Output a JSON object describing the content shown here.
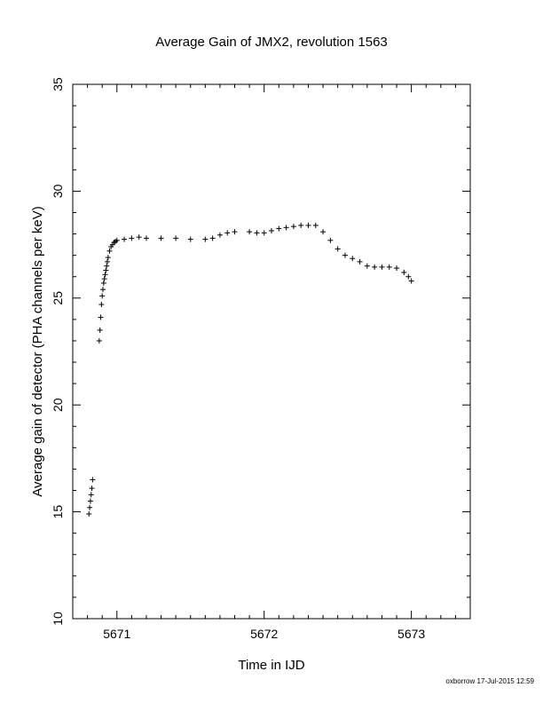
{
  "chart_data": {
    "type": "scatter",
    "title": "Average Gain of JMX2, revolution 1563",
    "xlabel": "Time in IJD",
    "ylabel": "Average gain of detector (PHA channels per keV)",
    "xlim": [
      5670.7,
      5673.4
    ],
    "ylim": [
      10,
      35
    ],
    "xticks": [
      5671,
      5672,
      5673
    ],
    "yticks": [
      10,
      15,
      20,
      25,
      30,
      35
    ],
    "x_minor_step": 0.1,
    "y_minor_step": 1,
    "grid": false,
    "marker": "+",
    "color": "#000000",
    "series": [
      {
        "points": [
          [
            5670.81,
            14.9
          ],
          [
            5670.815,
            15.2
          ],
          [
            5670.82,
            15.5
          ],
          [
            5670.825,
            15.8
          ],
          [
            5670.83,
            16.1
          ],
          [
            5670.835,
            16.5
          ],
          [
            5670.88,
            23.0
          ],
          [
            5670.885,
            23.5
          ],
          [
            5670.89,
            24.1
          ],
          [
            5670.895,
            24.7
          ],
          [
            5670.9,
            25.1
          ],
          [
            5670.905,
            25.4
          ],
          [
            5670.91,
            25.7
          ],
          [
            5670.915,
            25.9
          ],
          [
            5670.92,
            26.1
          ],
          [
            5670.925,
            26.3
          ],
          [
            5670.93,
            26.5
          ],
          [
            5670.935,
            26.7
          ],
          [
            5670.94,
            26.9
          ],
          [
            5670.95,
            27.2
          ],
          [
            5670.96,
            27.4
          ],
          [
            5670.97,
            27.5
          ],
          [
            5670.98,
            27.6
          ],
          [
            5670.99,
            27.65
          ],
          [
            5671.0,
            27.7
          ],
          [
            5671.05,
            27.75
          ],
          [
            5671.1,
            27.8
          ],
          [
            5671.15,
            27.85
          ],
          [
            5671.2,
            27.8
          ],
          [
            5671.3,
            27.8
          ],
          [
            5671.4,
            27.8
          ],
          [
            5671.5,
            27.75
          ],
          [
            5671.6,
            27.75
          ],
          [
            5671.65,
            27.8
          ],
          [
            5671.7,
            27.95
          ],
          [
            5671.75,
            28.05
          ],
          [
            5671.8,
            28.1
          ],
          [
            5671.9,
            28.1
          ],
          [
            5671.95,
            28.05
          ],
          [
            5672.0,
            28.05
          ],
          [
            5672.05,
            28.15
          ],
          [
            5672.1,
            28.25
          ],
          [
            5672.15,
            28.3
          ],
          [
            5672.2,
            28.35
          ],
          [
            5672.25,
            28.4
          ],
          [
            5672.3,
            28.4
          ],
          [
            5672.35,
            28.4
          ],
          [
            5672.4,
            28.1
          ],
          [
            5672.45,
            27.7
          ],
          [
            5672.5,
            27.3
          ],
          [
            5672.55,
            27.0
          ],
          [
            5672.6,
            26.85
          ],
          [
            5672.65,
            26.7
          ],
          [
            5672.7,
            26.5
          ],
          [
            5672.75,
            26.45
          ],
          [
            5672.8,
            26.45
          ],
          [
            5672.85,
            26.45
          ],
          [
            5672.9,
            26.4
          ],
          [
            5672.95,
            26.2
          ],
          [
            5672.98,
            26.0
          ],
          [
            5673.0,
            25.8
          ]
        ]
      }
    ]
  },
  "footer": {
    "stamp": "oxborrow 17-Jul-2015 12:59"
  }
}
